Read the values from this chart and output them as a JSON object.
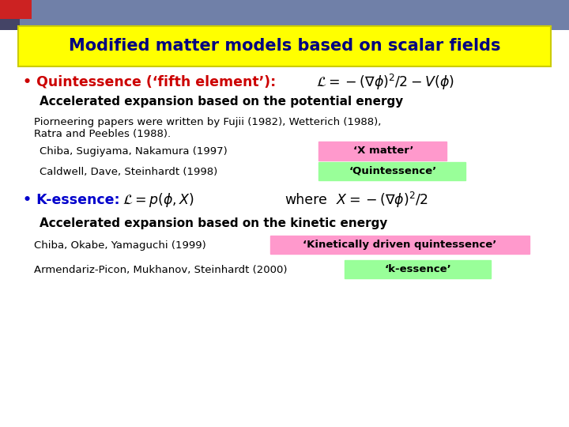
{
  "title": "Modified matter models based on scalar fields",
  "title_bg": "#ffff00",
  "title_color": "#000080",
  "bg_color": "#ffffff",
  "bullet1_label": "• Quintessence (‘fifth element’):",
  "bullet1_color": "#cc0000",
  "bullet1_sub": "Accelerated expansion based on the potential energy",
  "pioneer_line1": "Piorneering papers were written by Fujii (1982), Wetterich (1988),",
  "pioneer_line2": "Ratra and Peebles (1988).",
  "ref1_text": "Chiba, Sugiyama, Nakamura (1997)",
  "ref1_tag": "‘X matter’",
  "ref1_tag_bg": "#ff99cc",
  "ref2_text": "Caldwell, Dave, Steinhardt (1998)",
  "ref2_tag": "‘Quintessence’",
  "ref2_tag_bg": "#99ff99",
  "bullet2_label": "• K-essence:",
  "bullet2_color": "#0000cc",
  "bullet2_where": "where",
  "bullet2_sub": "Accelerated expansion based on the kinetic energy",
  "ref3_text": "Chiba, Okabe, Yamaguchi (1999)",
  "ref3_tag": "‘Kinetically driven quintessence’",
  "ref3_tag_bg": "#ff99cc",
  "ref4_text": "Armendariz-Picon, Mukhanov, Steinhardt (2000)",
  "ref4_tag": "‘k-essence’",
  "ref4_tag_bg": "#99ff99",
  "formula1": "$\\mathcal{L} = -(\\nabla\\phi)^2/2 - V(\\phi)$",
  "formula2": "$\\mathcal{L} = p(\\phi, X)$",
  "formula3": "$X = -(\\nabla\\phi)^2/2$"
}
